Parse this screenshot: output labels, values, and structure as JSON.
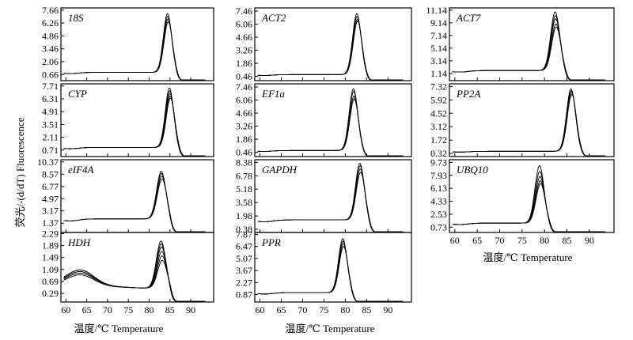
{
  "figure": {
    "y_axis_title": "荧光/-(d/dT) Fluorescence",
    "x_axis_title": "温度/℃ Temperature"
  },
  "chart_data": [
    {
      "type": "line",
      "gene": "18S",
      "column": 0,
      "row": 0,
      "peak_x": 84.5,
      "peak_width": 1.0,
      "baseline": 0.9,
      "peak_heights": [
        7.3,
        7.0,
        6.7,
        6.4
      ],
      "yticks": [
        0.66,
        2.06,
        3.46,
        4.86,
        6.26,
        7.66
      ],
      "ylim": [
        0,
        7.9
      ],
      "xlim": [
        58.8,
        95.5
      ]
    },
    {
      "type": "line",
      "gene": "ACT2",
      "column": 1,
      "row": 0,
      "peak_x": 82.8,
      "peak_width": 1.0,
      "baseline": 0.65,
      "peak_heights": [
        7.2,
        6.9,
        6.6,
        6.4
      ],
      "yticks": [
        0.46,
        1.86,
        3.26,
        4.66,
        6.06,
        7.46
      ],
      "ylim": [
        0,
        7.8
      ],
      "xlim": [
        58.8,
        95.5
      ]
    },
    {
      "type": "line",
      "gene": "ACT7",
      "column": 2,
      "row": 0,
      "peak_x": 82.5,
      "peak_width": 1.0,
      "baseline": 1.6,
      "peak_heights": [
        10.9,
        10.3,
        9.8,
        9.0,
        8.5
      ],
      "yticks": [
        1.14,
        3.14,
        5.14,
        7.14,
        9.14,
        11.14
      ],
      "ylim": [
        0,
        11.5
      ],
      "xlim": [
        58.8,
        95.5
      ]
    },
    {
      "type": "line",
      "gene": "CYP",
      "column": 0,
      "row": 1,
      "peak_x": 85.0,
      "peak_width": 1.0,
      "baseline": 1.0,
      "peak_heights": [
        7.5,
        7.2,
        6.9,
        6.6,
        6.4
      ],
      "yticks": [
        0.71,
        2.11,
        3.51,
        4.91,
        6.31,
        7.71
      ],
      "ylim": [
        0,
        7.95
      ],
      "xlim": [
        58.8,
        95.5
      ]
    },
    {
      "type": "line",
      "gene": "EF1a",
      "column": 1,
      "row": 1,
      "peak_x": 82.0,
      "peak_width": 1.0,
      "baseline": 0.65,
      "peak_heights": [
        7.3,
        7.0,
        6.5,
        6.2
      ],
      "yticks": [
        0.46,
        1.86,
        3.26,
        4.66,
        6.06,
        7.46
      ],
      "ylim": [
        0,
        7.8
      ],
      "xlim": [
        58.8,
        95.5
      ]
    },
    {
      "type": "line",
      "gene": "PP2A",
      "column": 2,
      "row": 1,
      "peak_x": 86.0,
      "peak_width": 1.0,
      "baseline": 0.55,
      "peak_heights": [
        7.1,
        6.9,
        6.7,
        6.5
      ],
      "yticks": [
        0.32,
        1.72,
        3.12,
        4.52,
        5.92,
        7.32
      ],
      "ylim": [
        0,
        7.6
      ],
      "xlim": [
        58.8,
        95.5
      ]
    },
    {
      "type": "line",
      "gene": "eIF4A",
      "column": 0,
      "row": 2,
      "peak_x": 83.0,
      "peak_width": 1.1,
      "baseline": 2.0,
      "peak_heights": [
        9.0,
        8.7,
        8.3,
        7.9
      ],
      "yticks": [
        1.37,
        3.17,
        4.97,
        6.77,
        8.57,
        10.37
      ],
      "ylim": [
        0,
        10.7
      ],
      "xlim": [
        58.8,
        95.5
      ]
    },
    {
      "type": "line",
      "gene": "GAPDH",
      "column": 1,
      "row": 2,
      "peak_x": 83.5,
      "peak_width": 1.0,
      "baseline": 1.5,
      "peak_heights": [
        8.3,
        8.0,
        7.6,
        7.2
      ],
      "yticks": [
        0.38,
        1.98,
        3.58,
        5.18,
        6.78,
        8.38
      ],
      "ylim": [
        0,
        8.7
      ],
      "xlim": [
        58.8,
        95.5
      ]
    },
    {
      "type": "line",
      "gene": "UBQ10",
      "column": 2,
      "row": 2,
      "peak_x": 79.0,
      "peak_width": 1.0,
      "baseline": 1.3,
      "peak_heights": [
        9.3,
        8.5,
        7.8,
        7.2,
        6.8
      ],
      "yticks": [
        0.73,
        2.53,
        4.33,
        6.13,
        7.93,
        9.73
      ],
      "ylim": [
        0,
        10.1
      ],
      "xlim": [
        58.8,
        95.5
      ],
      "xticks": [
        60,
        65,
        70,
        75,
        80,
        85,
        90
      ]
    },
    {
      "type": "line",
      "gene": "HDH",
      "column": 0,
      "row": 3,
      "peak_x": 83.0,
      "peak_width": 1.1,
      "baseline": 0.47,
      "hump_heights": [
        0.55,
        0.5,
        0.45,
        0.4
      ],
      "peak_heights": [
        2.05,
        1.95,
        1.85,
        1.7,
        1.55,
        1.4
      ],
      "yticks": [
        0.29,
        0.69,
        1.09,
        1.49,
        1.89,
        2.29
      ],
      "ylim": [
        0,
        2.33
      ],
      "xlim": [
        58.8,
        95.5
      ],
      "xticks": [
        60,
        65,
        70,
        75,
        80,
        85,
        90
      ]
    },
    {
      "type": "line",
      "gene": "PPR",
      "column": 1,
      "row": 3,
      "peak_x": 79.5,
      "peak_width": 1.0,
      "baseline": 1.1,
      "peak_heights": [
        7.4,
        7.1,
        6.8,
        6.5
      ],
      "yticks": [
        0.87,
        2.27,
        3.67,
        5.07,
        6.47,
        7.87
      ],
      "ylim": [
        0,
        8.1
      ],
      "xlim": [
        58.8,
        95.5
      ],
      "xticks": [
        60,
        65,
        70,
        75,
        80,
        85,
        90
      ]
    }
  ]
}
